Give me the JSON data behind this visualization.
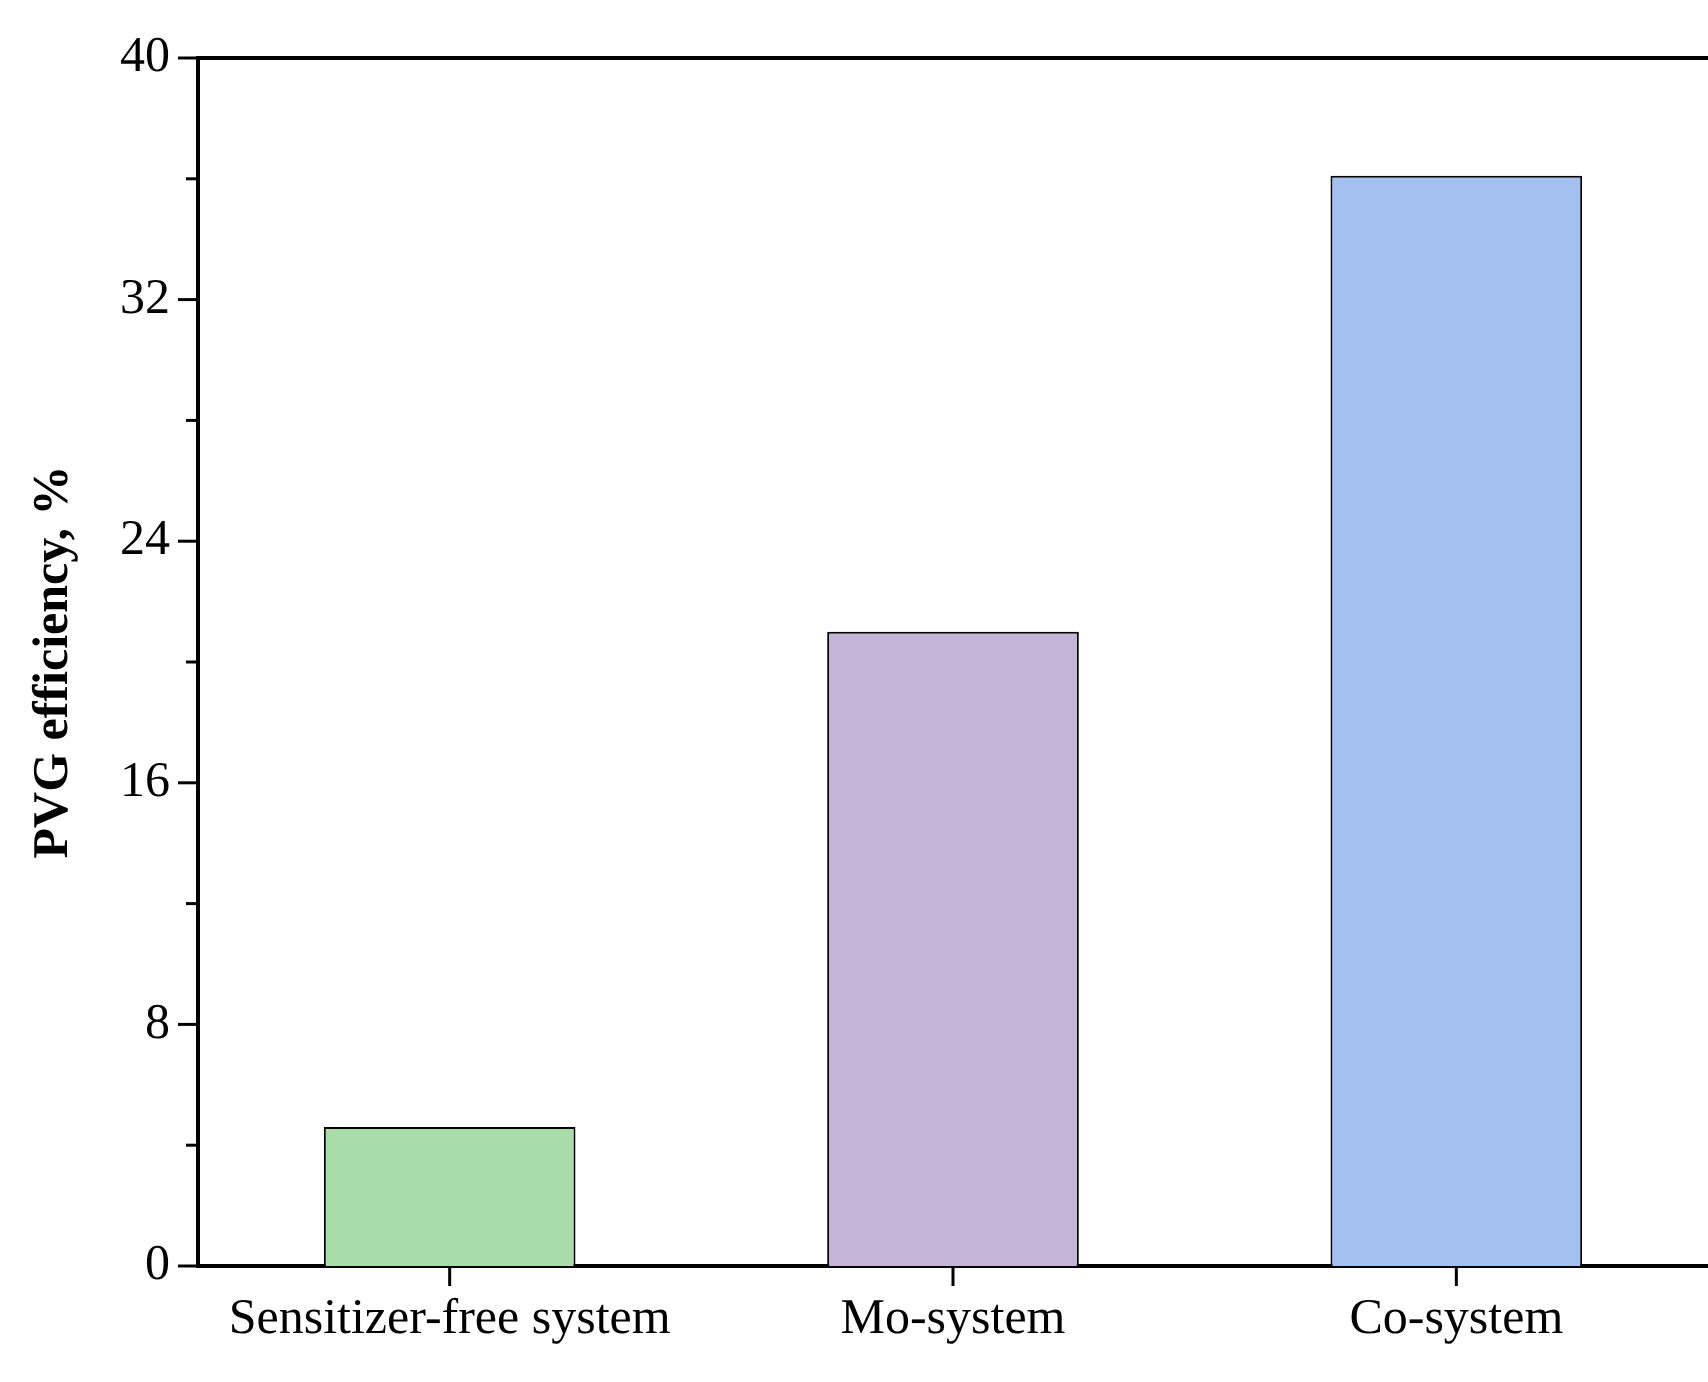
{
  "chart_data": {
    "type": "bar",
    "ylabel": "PVG efficiency, %",
    "categories": [
      "Sensitizer-free system",
      "Mo-system",
      "Co-system"
    ],
    "values": [
      4.6,
      21,
      36.1
    ],
    "colors": [
      "#a8dca8",
      "#c4b4d8",
      "#a4c0f0"
    ],
    "ylim": [
      0,
      40
    ],
    "yticks": [
      0,
      {
        "value": 4,
        "label": null
      },
      8,
      {
        "value": 12,
        "label": null
      },
      16,
      {
        "value": 20,
        "label": null
      },
      24,
      {
        "value": 28,
        "label": null
      },
      32,
      {
        "value": 36,
        "label": null
      },
      40
    ],
    "grid": false,
    "legend": false
  }
}
